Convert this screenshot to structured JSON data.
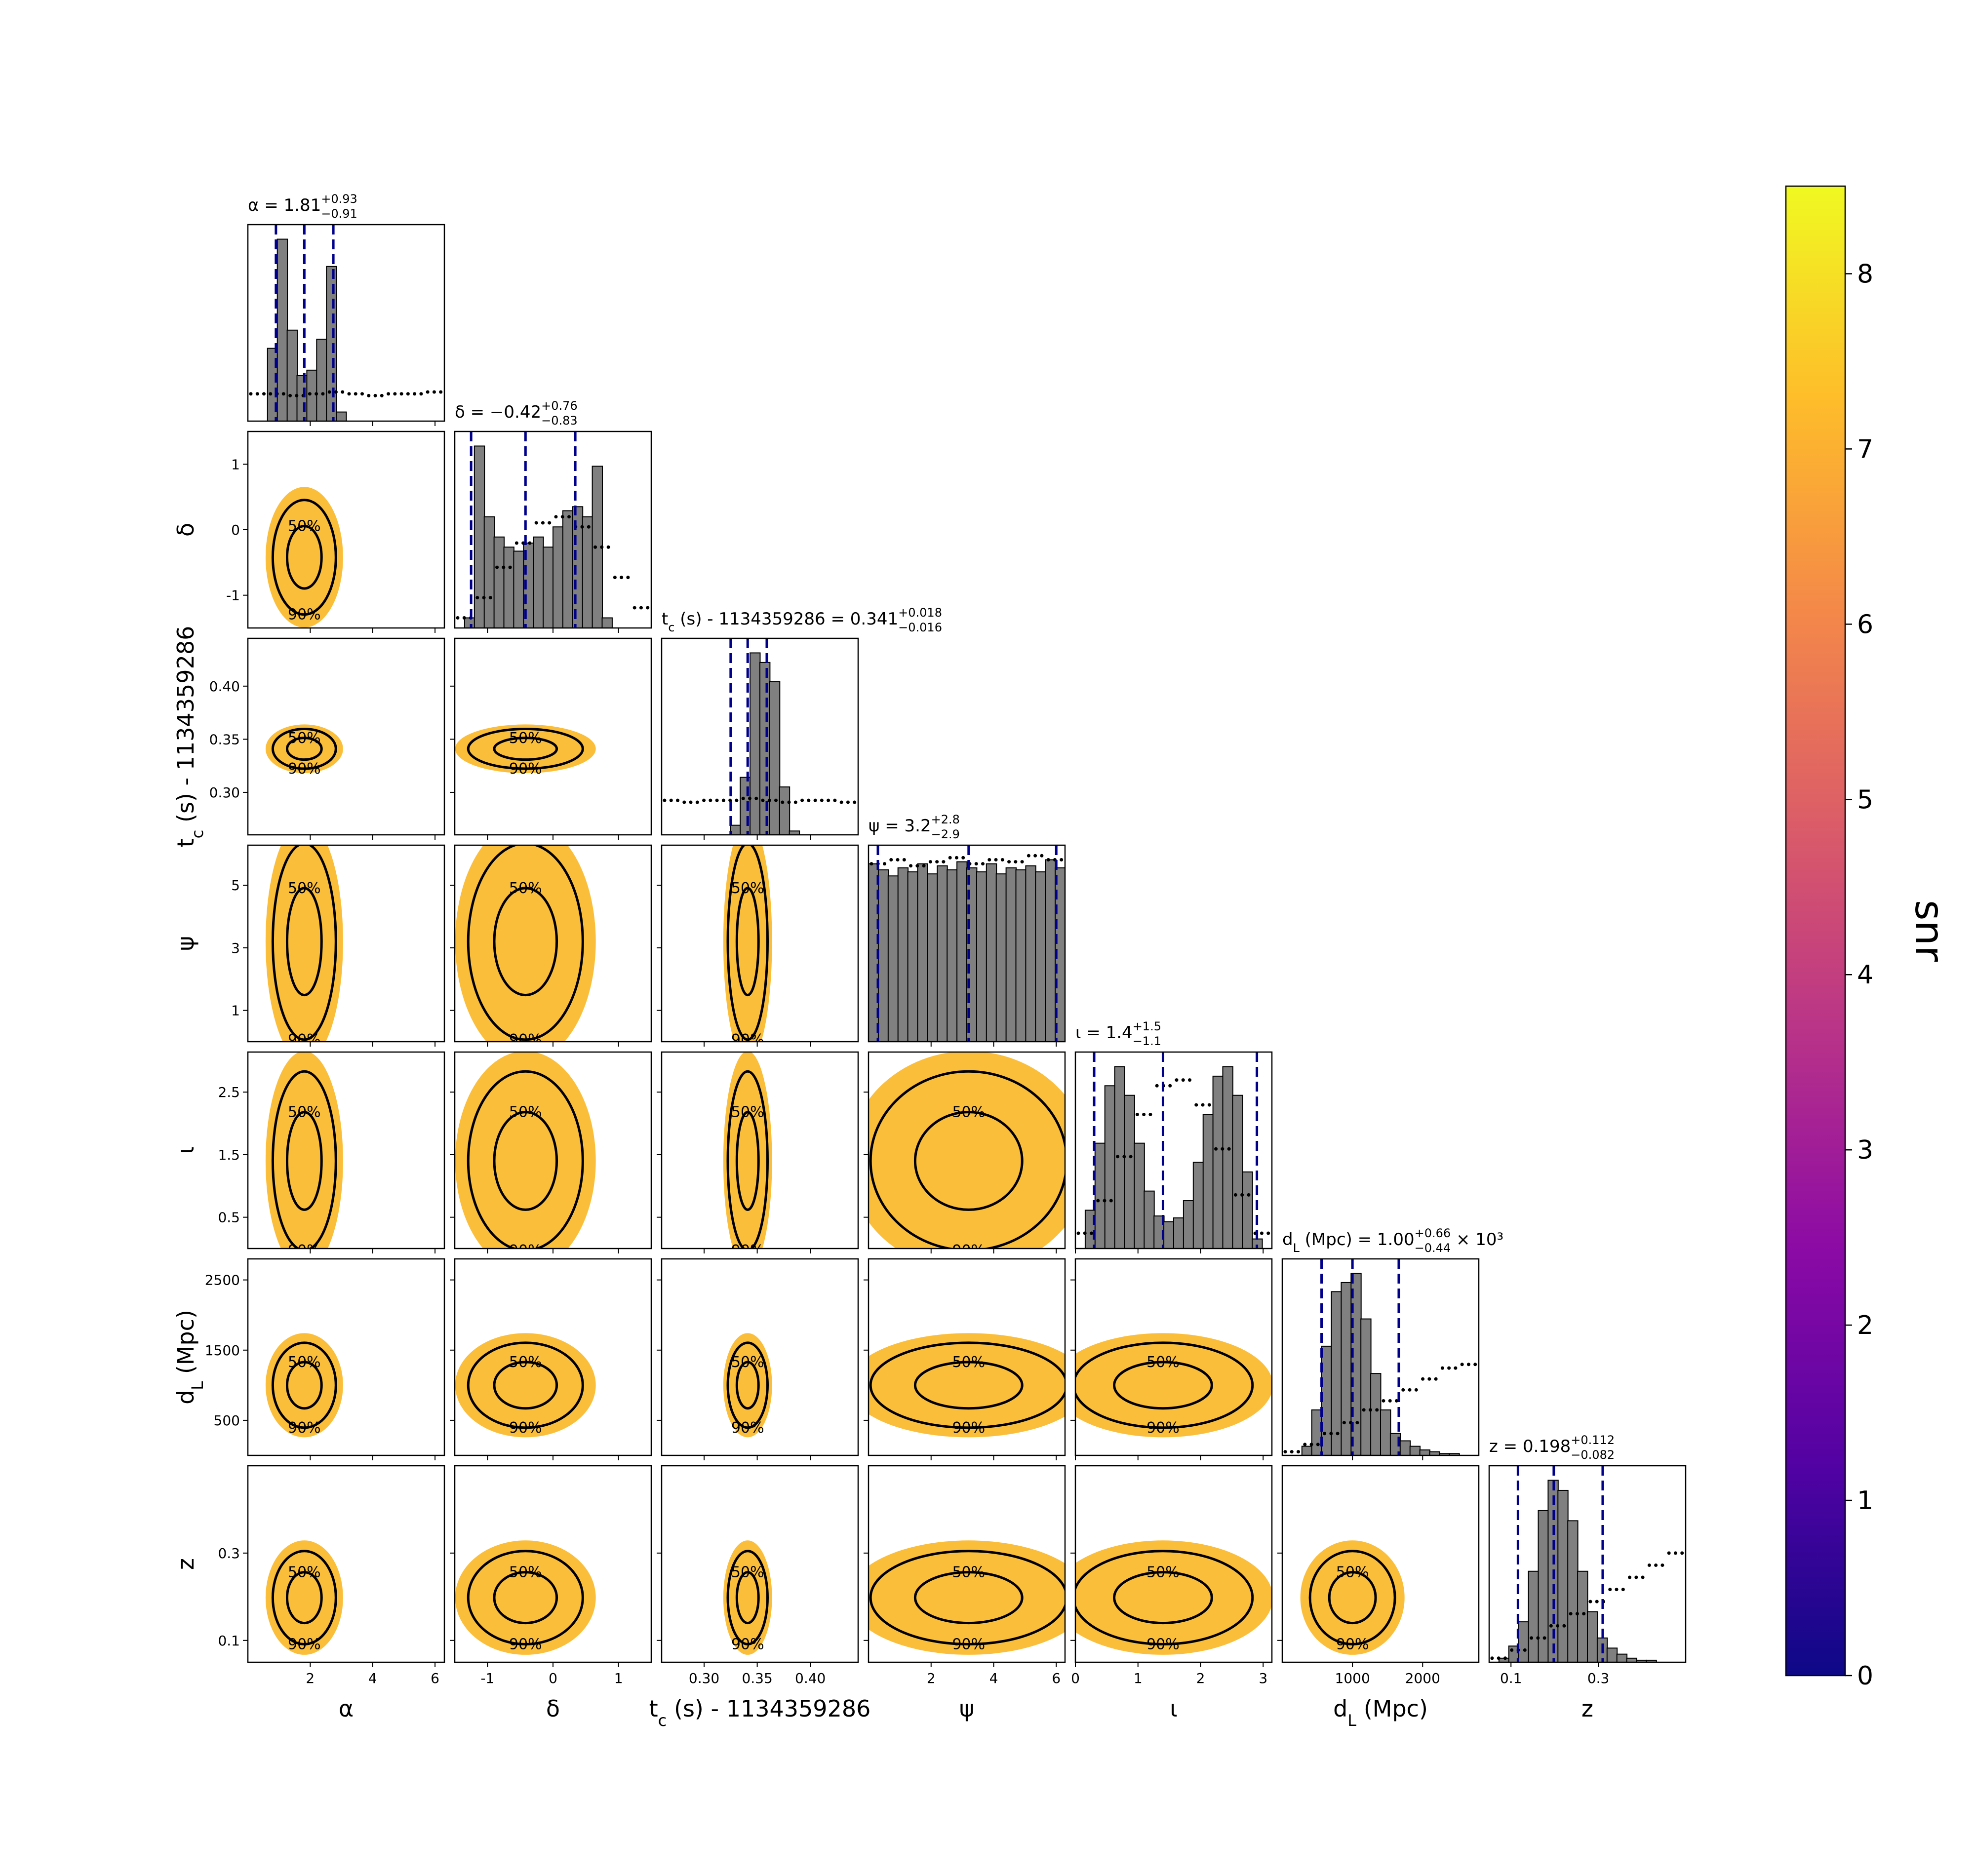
{
  "chart_data": {
    "type": "corner",
    "contour_labels": [
      "50%",
      "90%"
    ],
    "hist_color": "#808080",
    "quantile_color": "#00008b",
    "cloud_color": "#fbb829",
    "params": [
      {
        "label": [
          "α"
        ],
        "title": [
          "α = 1.81"
        ],
        "sup": "+0.93",
        "sub": "−0.91",
        "quantiles": [
          0.9,
          1.81,
          2.74
        ],
        "lim": [
          0,
          6.3
        ],
        "xticks": [
          2,
          4,
          6
        ],
        "hist": [
          0,
          0,
          40,
          100,
          50,
          25,
          28,
          45,
          85,
          5,
          0,
          0,
          0,
          0,
          0,
          0,
          0,
          0,
          0,
          0
        ],
        "prior": [
          15,
          15,
          14,
          15,
          16,
          15,
          14,
          15,
          15,
          16
        ]
      },
      {
        "label": [
          "δ"
        ],
        "title": [
          "δ = −0.42"
        ],
        "sup": "+0.76",
        "sub": "−0.83",
        "quantiles": [
          -1.25,
          -0.42,
          0.34
        ],
        "lim": [
          -1.5,
          1.5
        ],
        "xticks": [
          -1,
          0,
          1
        ],
        "yticks": [
          -1,
          0,
          1
        ],
        "hist": [
          0,
          5,
          90,
          55,
          45,
          40,
          38,
          42,
          45,
          40,
          50,
          58,
          60,
          55,
          80,
          5,
          0,
          0,
          0,
          0
        ],
        "prior": [
          5,
          15,
          30,
          42,
          52,
          55,
          50,
          40,
          25,
          10
        ]
      },
      {
        "label": [
          "t",
          "c",
          " (s) - 1134359286"
        ],
        "title": [
          "t",
          "c",
          " (s) - 1134359286 = 0.341"
        ],
        "sup": "+0.018",
        "sub": "−0.016",
        "quantiles": [
          0.325,
          0.341,
          0.359
        ],
        "lim": [
          0.26,
          0.445
        ],
        "xticks": [
          {
            "value": 0.3,
            "label": "0.30"
          },
          0.35,
          {
            "value": 0.4,
            "label": "0.40"
          }
        ],
        "yticks": [
          {
            "value": 0.3,
            "label": "0.30"
          },
          0.35,
          {
            "value": 0.4,
            "label": "0.40"
          }
        ],
        "hist": [
          0,
          0,
          0,
          0,
          0,
          0,
          0,
          5,
          30,
          95,
          90,
          80,
          25,
          2,
          0,
          0,
          0,
          0,
          0,
          0
        ],
        "prior": [
          18,
          17,
          18,
          18,
          19,
          18,
          17,
          18,
          18,
          17
        ]
      },
      {
        "label": [
          "ψ"
        ],
        "title": [
          "ψ = 3.2"
        ],
        "sup": "+2.8",
        "sub": "−2.9",
        "quantiles": [
          0.3,
          3.2,
          6.0
        ],
        "lim": [
          0,
          6.28
        ],
        "xticks": [
          2,
          4,
          6
        ],
        "yticks": [
          1,
          3,
          5
        ],
        "hist": [
          88,
          85,
          82,
          86,
          84,
          88,
          83,
          87,
          85,
          89,
          86,
          84,
          88,
          83,
          86,
          85,
          87,
          84,
          90,
          86
        ],
        "prior": [
          88,
          90,
          87,
          89,
          91,
          88,
          90,
          89,
          92,
          90
        ]
      },
      {
        "label": [
          "ι"
        ],
        "title": [
          "ι = 1.4"
        ],
        "sup": "+1.5",
        "sub": "−1.1",
        "quantiles": [
          0.3,
          1.4,
          2.9
        ],
        "lim": [
          0,
          3.14
        ],
        "xticks": [
          0,
          1,
          2,
          3
        ],
        "yticks": [
          0.5,
          1.5,
          2.5
        ],
        "hist": [
          0,
          20,
          55,
          85,
          95,
          80,
          55,
          30,
          17,
          14,
          16,
          25,
          45,
          70,
          90,
          95,
          80,
          40,
          5,
          0
        ],
        "prior": [
          8,
          25,
          48,
          70,
          85,
          88,
          75,
          52,
          28,
          8
        ]
      },
      {
        "label": [
          "d",
          "L",
          " (Mpc)"
        ],
        "title": [
          "d",
          "L",
          " (Mpc) = 1.00"
        ],
        "sup": "+0.66",
        "sub": "−0.44",
        "suffix": " × 10³",
        "quantiles": [
          560,
          1000,
          1660
        ],
        "lim": [
          0,
          2800
        ],
        "xticks": [
          1000,
          2000
        ],
        "yticks": [
          500,
          1500,
          2500
        ],
        "hist": [
          0,
          0,
          5,
          25,
          60,
          90,
          95,
          100,
          75,
          45,
          25,
          12,
          8,
          5,
          3,
          2,
          1,
          1,
          0,
          0
        ],
        "prior": [
          2,
          6,
          12,
          18,
          25,
          30,
          36,
          42,
          48,
          50
        ]
      },
      {
        "label": [
          "z"
        ],
        "title": [
          "z = 0.198"
        ],
        "sup": "+0.112",
        "sub": "−0.082",
        "quantiles": [
          0.116,
          0.198,
          0.31
        ],
        "lim": [
          0.05,
          0.5
        ],
        "xticks": [
          0.1,
          0.3
        ],
        "yticks": [
          0.1,
          0.3
        ],
        "hist": [
          0,
          2,
          8,
          20,
          45,
          75,
          90,
          85,
          70,
          45,
          25,
          12,
          7,
          4,
          2,
          1,
          1,
          0,
          0,
          0
        ],
        "prior": [
          2,
          6,
          12,
          18,
          24,
          30,
          36,
          42,
          48,
          54
        ]
      }
    ],
    "colorbar": {
      "label": "snr",
      "lim": [
        0,
        8.5
      ],
      "ticks": [
        0,
        1,
        2,
        3,
        4,
        5,
        6,
        7,
        8
      ],
      "colors": [
        "#0d0887",
        "#5302a3",
        "#8b0aa5",
        "#b83289",
        "#db5c68",
        "#f48849",
        "#febd2a",
        "#f0f921"
      ]
    }
  }
}
